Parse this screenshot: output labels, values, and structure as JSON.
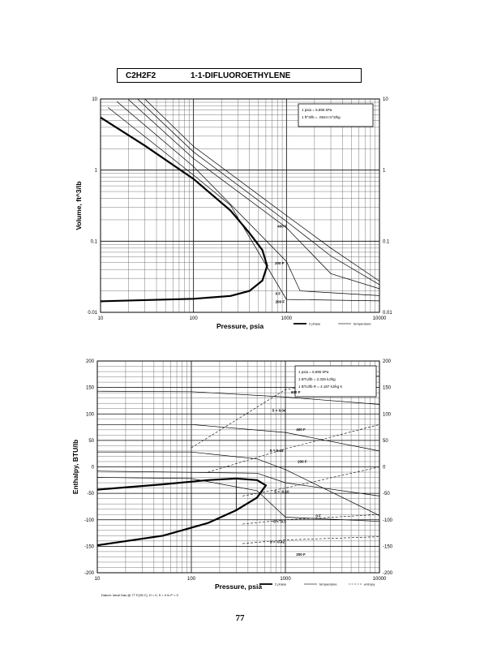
{
  "title": {
    "formula": "C2H2F2",
    "name": "1-1-DIFLUOROETHYLENE"
  },
  "page_number": "77",
  "footnote": "Datum: Ideal Gas @ 77 F(25 C), H = 0, S = 0 in P = 0",
  "chart_data": [
    {
      "type": "line",
      "xlabel": "Pressure,  psia",
      "ylabel": "Volume, ft^3/lb",
      "x_scale": "log",
      "y_scale": "log",
      "xlim": [
        10,
        10000
      ],
      "ylim": [
        0.01,
        10
      ],
      "x_ticks": [
        "10",
        "100",
        "1000",
        "10000"
      ],
      "y_ticks": [
        "10",
        "1",
        "0.1",
        "0.01"
      ],
      "grid": true,
      "legend": "bottom-right",
      "legend_entries": [
        "2 phase",
        "temperature"
      ],
      "notes": [
        "1 psia  =  6.895 kPa",
        "1 ft^3/lb  =  .0624 m^3/kg"
      ],
      "series": [
        {
          "kind": "2 phase",
          "label": "",
          "points": [
            [
              10,
              0.0143
            ],
            [
              100,
              0.0155
            ],
            [
              250,
              0.017
            ],
            [
              400,
              0.02
            ],
            [
              550,
              0.028
            ],
            [
              620,
              0.045
            ],
            [
              550,
              0.075
            ],
            [
              400,
              0.13
            ],
            [
              250,
              0.27
            ],
            [
              100,
              0.75
            ],
            [
              30,
              2.2
            ],
            [
              10,
              5.5
            ]
          ]
        },
        {
          "kind": "temperature",
          "label": "0 F",
          "points": [
            [
              12,
              7.6
            ],
            [
              100,
              0.85
            ],
            [
              250,
              0.32
            ],
            [
              1000,
              0.0152
            ],
            [
              10000,
              0.0145
            ]
          ]
        },
        {
          "kind": "temperature",
          "label": "200 F",
          "points": [
            [
              15,
              9.2
            ],
            [
              100,
              1.12
            ],
            [
              1000,
              0.052
            ],
            [
              1400,
              0.02
            ],
            [
              10000,
              0.0172
            ]
          ]
        },
        {
          "kind": "temperature",
          "label": "400 F",
          "points": [
            [
              20,
              9.8
            ],
            [
              100,
              1.45
            ],
            [
              1000,
              0.155
            ],
            [
              3000,
              0.035
            ],
            [
              10000,
              0.0215
            ]
          ]
        },
        {
          "kind": "temperature",
          "label": "",
          "points": [
            [
              25,
              10
            ],
            [
              100,
              1.8
            ],
            [
              1000,
              0.19
            ],
            [
              3000,
              0.062
            ],
            [
              10000,
              0.0245
            ]
          ]
        },
        {
          "kind": "temperature",
          "label": "",
          "points": [
            [
              30,
              10
            ],
            [
              100,
              2.15
            ],
            [
              1000,
              0.23
            ],
            [
              3000,
              0.08
            ],
            [
              10000,
              0.0275
            ]
          ]
        }
      ]
    },
    {
      "type": "line",
      "xlabel": "Pressure,  psia",
      "ylabel": "Enthalpy, BTU/lb",
      "x_scale": "log",
      "y_scale": "linear",
      "xlim": [
        10,
        10000
      ],
      "ylim": [
        -200,
        200
      ],
      "x_ticks": [
        "10",
        "100",
        "1000",
        "10000"
      ],
      "y_ticks": [
        "200",
        "150",
        "100",
        "50",
        "0",
        "-50",
        "-100",
        "-150",
        "-200"
      ],
      "grid": true,
      "legend": "bottom-right",
      "legend_entries": [
        "2 phase",
        "temperature",
        "entropy"
      ],
      "notes": [
        "1 psia  =  6.895 kPa",
        "1 BTU/lb  =  2.326 kJ/kg",
        "1 BTU/lb R  =  4.187 kJ/kg K"
      ],
      "series": [
        {
          "kind": "2 phase",
          "label": "",
          "points": [
            [
              10,
              -148
            ],
            [
              50,
              -130
            ],
            [
              150,
              -106
            ],
            [
              300,
              -82
            ],
            [
              500,
              -58
            ],
            [
              620,
              -35
            ],
            [
              500,
              -25
            ],
            [
              300,
              -22
            ],
            [
              150,
              -25
            ],
            [
              50,
              -33
            ],
            [
              10,
              -43
            ]
          ]
        },
        {
          "kind": "temperature",
          "label": "0 F",
          "points": [
            [
              10,
              -20
            ],
            [
              100,
              -22
            ],
            [
              500,
              -45
            ],
            [
              1000,
              -95
            ],
            [
              10000,
              -103
            ]
          ]
        },
        {
          "kind": "temperature",
          "label": "200 F",
          "points": [
            [
              10,
              28
            ],
            [
              100,
              28
            ],
            [
              500,
              15
            ],
            [
              1000,
              -5
            ],
            [
              10000,
              -92
            ]
          ]
        },
        {
          "kind": "temperature",
          "label": "400 F",
          "points": [
            [
              10,
              80
            ],
            [
              100,
              80
            ],
            [
              1000,
              65
            ],
            [
              10000,
              30
            ]
          ]
        },
        {
          "kind": "temperature",
          "label": "600 F",
          "points": [
            [
              10,
              143
            ],
            [
              100,
              142
            ],
            [
              1000,
              132
            ],
            [
              10000,
              118
            ]
          ]
        },
        {
          "kind": "temperature",
          "label": "",
          "points": [
            [
              10,
              -8
            ],
            [
              500,
              -12
            ],
            [
              1000,
              -30
            ],
            [
              10000,
              -55
            ]
          ]
        },
        {
          "kind": "entropy",
          "label": "S = 0.04",
          "points": [
            [
              100,
              36
            ],
            [
              1000,
              146
            ],
            [
              10000,
              172
            ]
          ]
        },
        {
          "kind": "entropy",
          "label": "S = 0.02",
          "points": [
            [
              150,
              -10
            ],
            [
              1000,
              34
            ],
            [
              10000,
              80
            ]
          ]
        },
        {
          "kind": "entropy",
          "label": "S = -0.10",
          "points": [
            [
              350,
              -55
            ],
            [
              1000,
              -40
            ],
            [
              10000,
              0
            ]
          ]
        },
        {
          "kind": "entropy",
          "label": "S = -0.3",
          "points": [
            [
              350,
              -108
            ],
            [
              1000,
              -100
            ],
            [
              10000,
              -90
            ]
          ]
        },
        {
          "kind": "entropy",
          "label": "S = -0.42",
          "points": [
            [
              350,
              -145
            ],
            [
              1000,
              -138
            ],
            [
              10000,
              -132
            ]
          ]
        }
      ],
      "labels": [
        {
          "text": "600 F",
          "x": 1150,
          "y": 139
        },
        {
          "text": "S = 0.04",
          "x": 720,
          "y": 104
        },
        {
          "text": "400 F",
          "x": 1300,
          "y": 68
        },
        {
          "text": "S = 0.02",
          "x": 680,
          "y": 28
        },
        {
          "text": "200 F",
          "x": 1350,
          "y": 8
        },
        {
          "text": "S = -0.10",
          "x": 760,
          "y": -49
        },
        {
          "text": "0 F",
          "x": 2100,
          "y": -95
        },
        {
          "text": "S = -0.3",
          "x": 740,
          "y": -106
        },
        {
          "text": "S = -0.42",
          "x": 680,
          "y": -144
        },
        {
          "text": "200 F",
          "x": 1300,
          "y": -168
        }
      ]
    }
  ],
  "chart1_labels": [
    {
      "text": "400 F",
      "x": 800,
      "y": 0.155
    },
    {
      "text": "200 F",
      "x": 750,
      "y": 0.047
    },
    {
      "text": "0 F",
      "x": 760,
      "y": 0.0175
    },
    {
      "text": "200 F",
      "x": 760,
      "y": 0.0135
    }
  ],
  "colors": {
    "ink": "#000000",
    "grid": "#555555",
    "background": "#ffffff"
  }
}
